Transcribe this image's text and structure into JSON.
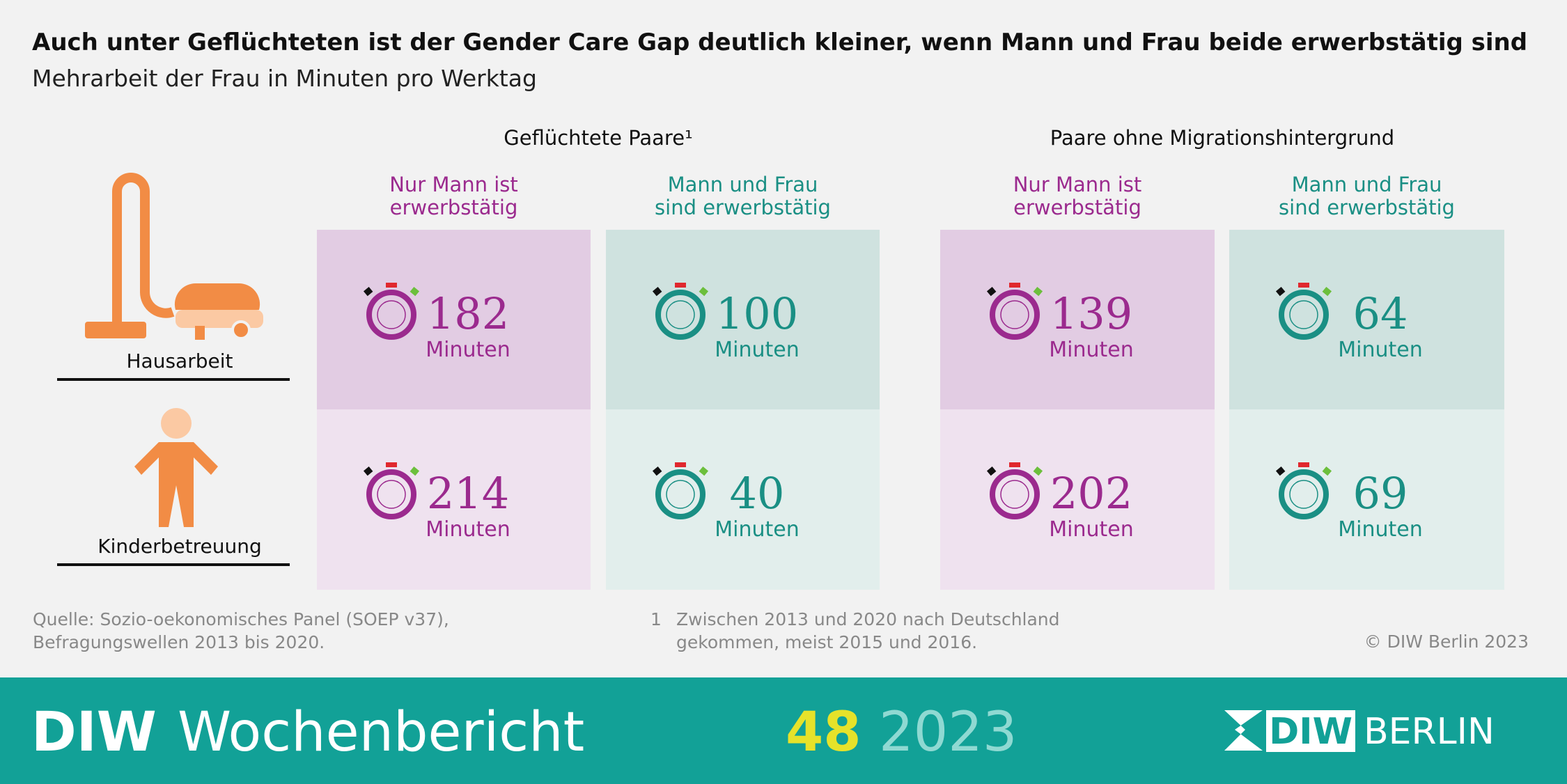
{
  "title": "Auch unter Geflüchteten ist der Gender Care Gap deutlich kleiner, wenn Mann und Frau beide erwerbstätig sind",
  "subtitle": "Mehrarbeit der Frau in Minuten pro Werktag",
  "groups": [
    {
      "label": "Geflüchtete Paare¹",
      "columns": [
        {
          "lines": [
            "Nur Mann ist",
            "erwerbstätig"
          ],
          "values": [
            182,
            214
          ]
        },
        {
          "lines": [
            "Mann und Frau",
            "sind erwerbstätig"
          ],
          "values": [
            100,
            40
          ]
        }
      ]
    },
    {
      "label": "Paare ohne Migrationshintergrund",
      "columns": [
        {
          "lines": [
            "Nur Mann ist",
            "erwerbstätig"
          ],
          "values": [
            139,
            202
          ]
        },
        {
          "lines": [
            "Mann und Frau",
            "sind erwerbstätig"
          ],
          "values": [
            64,
            69
          ]
        }
      ]
    }
  ],
  "rows": [
    "Hausarbeit",
    "Kinderbetreuung"
  ],
  "unit": "Minuten",
  "source": [
    "Quelle: Sozio-oekonomisches Panel (SOEP v37),",
    "Befragungswellen 2013 bis 2020."
  ],
  "footnote": {
    "number": "1",
    "lines": [
      "Zwischen 2013 und 2020 nach Deutschland",
      "gekommen, meist 2015 und 2016."
    ]
  },
  "copyright": "© DIW Berlin 2023",
  "banner": {
    "brand": "DIW",
    "publication": "Wochenbericht",
    "issue": "48",
    "year": "2023",
    "logo": [
      "DIW",
      "BERLIN"
    ]
  }
}
